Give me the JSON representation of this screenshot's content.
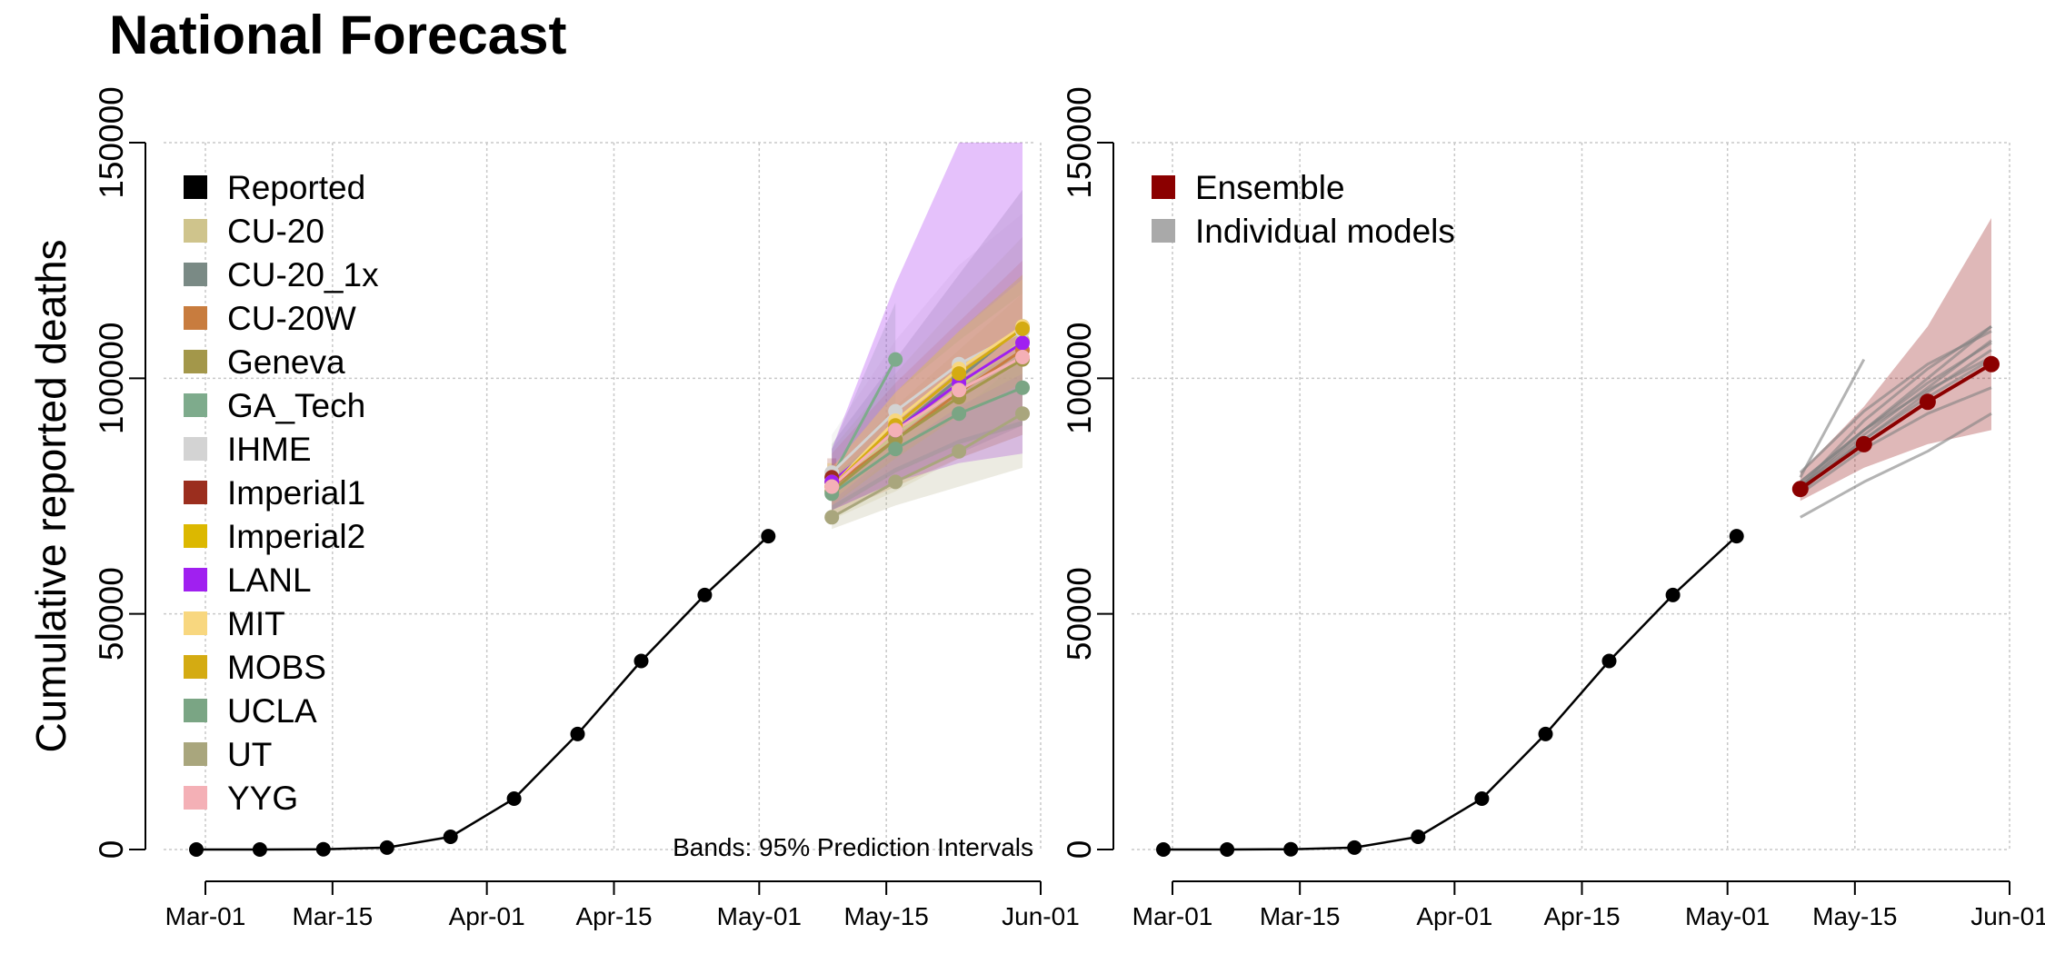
{
  "title": "National Forecast",
  "chart_data": [
    {
      "type": "line",
      "panel": "left",
      "ylabel": "Cumulative reported deaths",
      "x_ticks": [
        "Mar-01",
        "Mar-15",
        "Apr-01",
        "Apr-15",
        "May-01",
        "May-15",
        "Jun-01"
      ],
      "y_ticks": [
        0,
        50000,
        100000,
        150000
      ],
      "ylim": [
        0,
        150000
      ],
      "grid": true,
      "legend_position": "top-left",
      "annotation": "Bands: 95% Prediction Intervals",
      "series": [
        {
          "name": "Reported",
          "color": "#000000",
          "x": [
            "2020-02-29",
            "2020-03-07",
            "2020-03-14",
            "2020-03-21",
            "2020-03-28",
            "2020-04-04",
            "2020-04-11",
            "2020-04-18",
            "2020-04-25",
            "2020-05-02"
          ],
          "y": [
            0,
            0,
            60,
            400,
            2700,
            10800,
            24500,
            40000,
            54000,
            66500
          ]
        },
        {
          "name": "CU-20",
          "color": "#cfc48c",
          "x": [
            "2020-05-09",
            "2020-05-16",
            "2020-05-23",
            "2020-05-30"
          ],
          "y": [
            77000,
            88000,
            98000,
            108000
          ],
          "band_lo": [
            70000,
            76000,
            83000,
            88000
          ],
          "band_hi": [
            85000,
            101000,
            116000,
            130000
          ]
        },
        {
          "name": "CU-20_1x",
          "color": "#7a8a85",
          "x": [
            "2020-05-09",
            "2020-05-16",
            "2020-05-23",
            "2020-05-30"
          ],
          "y": [
            78000,
            89000,
            100000,
            111000
          ],
          "band_lo": [
            72000,
            78000,
            84000,
            90000
          ],
          "band_hi": [
            86000,
            104000,
            122000,
            140000
          ]
        },
        {
          "name": "CU-20W",
          "color": "#c87c3e",
          "x": [
            "2020-05-09",
            "2020-05-16",
            "2020-05-23",
            "2020-05-30"
          ],
          "y": [
            77000,
            87000,
            97000,
            106000
          ],
          "band_lo": [
            71000,
            77000,
            83000,
            88000
          ],
          "band_hi": [
            84000,
            99000,
            112000,
            125000
          ]
        },
        {
          "name": "Geneva",
          "color": "#a3974a",
          "x": [
            "2020-05-09",
            "2020-05-16",
            "2020-05-23",
            "2020-05-30"
          ],
          "y": [
            76000,
            87000,
            96000,
            104000
          ],
          "band_lo": [
            72000,
            80000,
            86000,
            90000
          ],
          "band_hi": [
            80000,
            94000,
            106000,
            118000
          ]
        },
        {
          "name": "GA_Tech",
          "color": "#7eab8c",
          "x": [
            "2020-05-09",
            "2020-05-16"
          ],
          "y": [
            79000,
            104000
          ],
          "band_lo": [
            74000,
            93000
          ],
          "band_hi": [
            85000,
            116000
          ]
        },
        {
          "name": "IHME",
          "color": "#d3d3d3",
          "x": [
            "2020-05-09",
            "2020-05-16",
            "2020-05-23",
            "2020-05-30"
          ],
          "y": [
            80000,
            93000,
            103000,
            110000
          ],
          "band_lo": [
            72000,
            80000,
            86000,
            90000
          ],
          "band_hi": [
            88000,
            108000,
            124000,
            135000
          ]
        },
        {
          "name": "Imperial1",
          "color": "#9b2e1e",
          "x": [
            "2020-05-09"
          ],
          "y": [
            79000
          ],
          "band_lo": [
            76000
          ],
          "band_hi": [
            83000
          ]
        },
        {
          "name": "Imperial2",
          "color": "#dcb800",
          "x": [
            "2020-05-09"
          ],
          "y": [
            78000
          ],
          "band_lo": [
            75000
          ],
          "band_hi": [
            82000
          ]
        },
        {
          "name": "LANL",
          "color": "#a020f0",
          "x": [
            "2020-05-09",
            "2020-05-16",
            "2020-05-23",
            "2020-05-30"
          ],
          "y": [
            78000,
            89000,
            99000,
            107500
          ],
          "band_lo": [
            72000,
            78000,
            82000,
            84000
          ],
          "band_hi": [
            85000,
            120000,
            150000,
            150000
          ]
        },
        {
          "name": "MIT",
          "color": "#f8d77f",
          "x": [
            "2020-05-09",
            "2020-05-16",
            "2020-05-23",
            "2020-05-30"
          ],
          "y": [
            77000,
            91000,
            102000,
            111000
          ],
          "band_lo": [
            74000,
            85000,
            94000,
            101000
          ],
          "band_hi": [
            81000,
            97000,
            110000,
            121000
          ]
        },
        {
          "name": "MOBS",
          "color": "#d4ab12",
          "x": [
            "2020-05-09",
            "2020-05-16",
            "2020-05-23",
            "2020-05-30"
          ],
          "y": [
            77000,
            90000,
            101000,
            110500
          ],
          "band_lo": [
            73000,
            83000,
            92000,
            99000
          ],
          "band_hi": [
            81000,
            97000,
            110000,
            122000
          ]
        },
        {
          "name": "UCLA",
          "color": "#7aa584",
          "x": [
            "2020-05-09",
            "2020-05-16",
            "2020-05-23",
            "2020-05-30"
          ],
          "y": [
            75500,
            85000,
            92500,
            98000
          ],
          "band_lo": [
            72000,
            80000,
            86000,
            90000
          ],
          "band_hi": [
            79000,
            90000,
            99000,
            106000
          ]
        },
        {
          "name": "UT",
          "color": "#a9a67d",
          "x": [
            "2020-05-09",
            "2020-05-16",
            "2020-05-23",
            "2020-05-30"
          ],
          "y": [
            70500,
            78000,
            84500,
            92500
          ],
          "band_lo": [
            68000,
            73000,
            77000,
            81000
          ],
          "band_hi": [
            73000,
            84000,
            93000,
            104000
          ]
        },
        {
          "name": "YYG",
          "color": "#f4b0b6",
          "x": [
            "2020-05-09",
            "2020-05-16",
            "2020-05-23",
            "2020-05-30"
          ],
          "y": [
            77000,
            89000,
            97500,
            104500
          ],
          "band_lo": [
            73000,
            81000,
            87000,
            91000
          ],
          "band_hi": [
            81000,
            97000,
            108000,
            118000
          ]
        }
      ]
    },
    {
      "type": "line",
      "panel": "right",
      "x_ticks": [
        "Mar-01",
        "Mar-15",
        "Apr-01",
        "Apr-15",
        "May-01",
        "May-15",
        "Jun-01"
      ],
      "y_ticks": [
        0,
        50000,
        100000,
        150000
      ],
      "ylim": [
        0,
        150000
      ],
      "grid": true,
      "legend_position": "top-left",
      "series": [
        {
          "name": "Ensemble",
          "color": "#8b0000",
          "x": [
            "2020-05-09",
            "2020-05-16",
            "2020-05-23",
            "2020-05-30"
          ],
          "y": [
            76500,
            86000,
            95000,
            103000
          ],
          "band_lo": [
            74000,
            81000,
            86000,
            89000
          ],
          "band_hi": [
            80000,
            94000,
            111000,
            134000
          ]
        },
        {
          "name": "Individual models",
          "color": "#a9a9a9"
        },
        {
          "name": "Reported",
          "color": "#000000",
          "x": [
            "2020-02-29",
            "2020-03-07",
            "2020-03-14",
            "2020-03-21",
            "2020-03-28",
            "2020-04-04",
            "2020-04-11",
            "2020-04-18",
            "2020-04-25",
            "2020-05-02"
          ],
          "y": [
            0,
            0,
            60,
            400,
            2700,
            10800,
            24500,
            40000,
            54000,
            66500
          ]
        }
      ],
      "individual_models": [
        {
          "x": [
            "2020-05-09",
            "2020-05-16",
            "2020-05-23",
            "2020-05-30"
          ],
          "y": [
            77000,
            88000,
            98000,
            108000
          ]
        },
        {
          "x": [
            "2020-05-09",
            "2020-05-16",
            "2020-05-23",
            "2020-05-30"
          ],
          "y": [
            78000,
            89000,
            100000,
            111000
          ]
        },
        {
          "x": [
            "2020-05-09",
            "2020-05-16",
            "2020-05-23",
            "2020-05-30"
          ],
          "y": [
            77000,
            87000,
            97000,
            106000
          ]
        },
        {
          "x": [
            "2020-05-09",
            "2020-05-16",
            "2020-05-23",
            "2020-05-30"
          ],
          "y": [
            76000,
            87000,
            96000,
            104000
          ]
        },
        {
          "x": [
            "2020-05-09",
            "2020-05-16"
          ],
          "y": [
            79000,
            104000
          ]
        },
        {
          "x": [
            "2020-05-09",
            "2020-05-16",
            "2020-05-23",
            "2020-05-30"
          ],
          "y": [
            80000,
            93000,
            103000,
            110000
          ]
        },
        {
          "x": [
            "2020-05-09",
            "2020-05-16",
            "2020-05-23",
            "2020-05-30"
          ],
          "y": [
            78000,
            89000,
            99000,
            107500
          ]
        },
        {
          "x": [
            "2020-05-09",
            "2020-05-16",
            "2020-05-23",
            "2020-05-30"
          ],
          "y": [
            77000,
            91000,
            102000,
            111000
          ]
        },
        {
          "x": [
            "2020-05-09",
            "2020-05-16",
            "2020-05-23",
            "2020-05-30"
          ],
          "y": [
            75500,
            85000,
            92500,
            98000
          ]
        },
        {
          "x": [
            "2020-05-09",
            "2020-05-16",
            "2020-05-23",
            "2020-05-30"
          ],
          "y": [
            70500,
            78000,
            84500,
            92500
          ]
        },
        {
          "x": [
            "2020-05-09",
            "2020-05-16",
            "2020-05-23",
            "2020-05-30"
          ],
          "y": [
            77000,
            89000,
            97500,
            104500
          ]
        }
      ]
    }
  ]
}
